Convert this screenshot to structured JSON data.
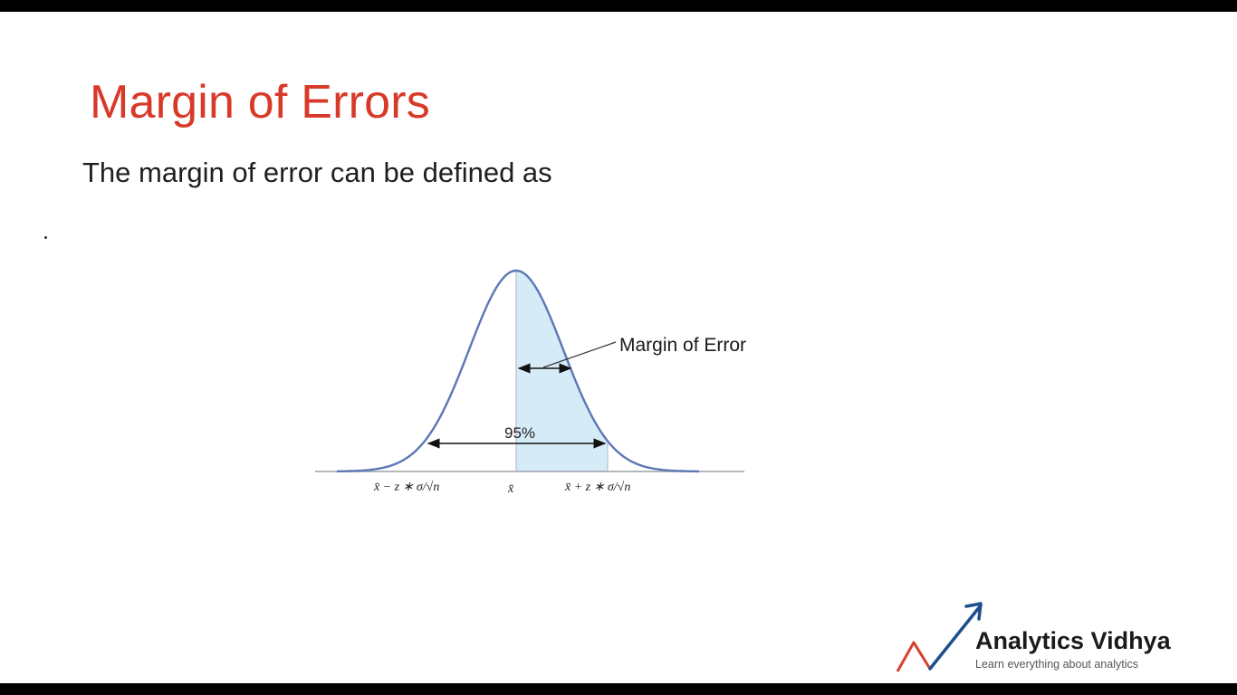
{
  "slide": {
    "title": "Margin of Errors",
    "subtitle": "The margin of error can be defined as",
    "title_color": "#d83a2a",
    "background": "#ffffff"
  },
  "diagram": {
    "type": "normal-distribution-confidence-interval",
    "annotation_label": "Margin of Error",
    "percent_label": "95%",
    "x_labels": {
      "left": "x̄ − z ∗ σ/√n",
      "center": "x̄",
      "right": "x̄ + z ∗ σ/√n"
    },
    "curve_color": "#5b77b4",
    "shade_color": "#d6ebf8"
  },
  "logo": {
    "name": "Analytics Vidhya",
    "tagline": "Learn everything about analytics",
    "arrow_color": "#1e4f8c",
    "accent_color": "#d8402e"
  }
}
